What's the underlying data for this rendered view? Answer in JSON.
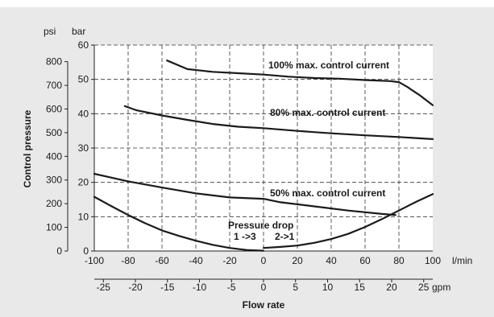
{
  "chart_data": {
    "type": "line",
    "ylabel": "Control pressure",
    "y_units": {
      "psi": "psi",
      "bar": "bar"
    },
    "ylim_bar": [
      0,
      60
    ],
    "bar_ticks": [
      0,
      10,
      20,
      30,
      40,
      50,
      60
    ],
    "psi_ticks": [
      0,
      100,
      200,
      300,
      400,
      500,
      600,
      700,
      800
    ],
    "xlabel": "Flow rate",
    "x_units": {
      "lpm": "l/min",
      "gpm": "gpm"
    },
    "xlim_lpm": [
      -100,
      100
    ],
    "lpm_ticks": [
      -100,
      -80,
      -60,
      -40,
      -20,
      0,
      20,
      40,
      60,
      80,
      100
    ],
    "gpm_ticks": [
      -25,
      -20,
      -15,
      -10,
      -5,
      0,
      5,
      10,
      15,
      20,
      25
    ],
    "gpm_per_lpm": 0.264172,
    "grid": true,
    "series": [
      {
        "name": "100% max. control current",
        "points": [
          [
            -57,
            55.5
          ],
          [
            -45,
            53
          ],
          [
            -30,
            52.2
          ],
          [
            -15,
            51.8
          ],
          [
            0,
            51.4
          ],
          [
            15,
            50.8
          ],
          [
            30,
            50.4
          ],
          [
            45,
            50.2
          ],
          [
            60,
            49.8
          ],
          [
            75,
            49.5
          ],
          [
            80,
            49.2
          ],
          [
            85,
            47.8
          ],
          [
            92,
            45.5
          ],
          [
            100,
            42.5
          ]
        ]
      },
      {
        "name": "80% max. control current",
        "points": [
          [
            -82,
            42.2
          ],
          [
            -75,
            41
          ],
          [
            -60,
            39.5
          ],
          [
            -45,
            38.2
          ],
          [
            -30,
            37
          ],
          [
            -15,
            36.2
          ],
          [
            0,
            35.8
          ],
          [
            20,
            35
          ],
          [
            40,
            34.3
          ],
          [
            60,
            33.7
          ],
          [
            80,
            33.2
          ],
          [
            100,
            32.6
          ]
        ]
      },
      {
        "name": "50% max. control current",
        "points": [
          [
            -100,
            22.5
          ],
          [
            -80,
            20.3
          ],
          [
            -60,
            18.5
          ],
          [
            -40,
            16.8
          ],
          [
            -20,
            15.6
          ],
          [
            0,
            15.2
          ],
          [
            10,
            14.2
          ],
          [
            30,
            13
          ],
          [
            50,
            11.8
          ],
          [
            70,
            10.8
          ],
          [
            78,
            10.5
          ]
        ]
      },
      {
        "name": "Pressure drop 1->3",
        "points": [
          [
            -100,
            15.8
          ],
          [
            -90,
            13.1
          ],
          [
            -80,
            10.5
          ],
          [
            -70,
            8.1
          ],
          [
            -60,
            6.0
          ],
          [
            -50,
            4.4
          ],
          [
            -40,
            3.0
          ],
          [
            -30,
            1.8
          ],
          [
            -20,
            0.9
          ],
          [
            -10,
            0.3
          ],
          [
            0,
            0.1
          ]
        ]
      },
      {
        "name": "Pressure drop 2->1",
        "points": [
          [
            0,
            0.9
          ],
          [
            10,
            1.2
          ],
          [
            20,
            1.6
          ],
          [
            30,
            2.4
          ],
          [
            40,
            3.5
          ],
          [
            50,
            5.0
          ],
          [
            60,
            7.0
          ],
          [
            70,
            9.3
          ],
          [
            80,
            11.8
          ],
          [
            90,
            14.3
          ],
          [
            100,
            16.6
          ]
        ]
      }
    ],
    "annotations": {
      "curve100": "100% max. control current",
      "curve80": "80% max. control current",
      "curve50": "50% max. control current",
      "drop_title": "Pressure drop",
      "drop_13": "1 ->3",
      "drop_21": "2->1"
    }
  }
}
